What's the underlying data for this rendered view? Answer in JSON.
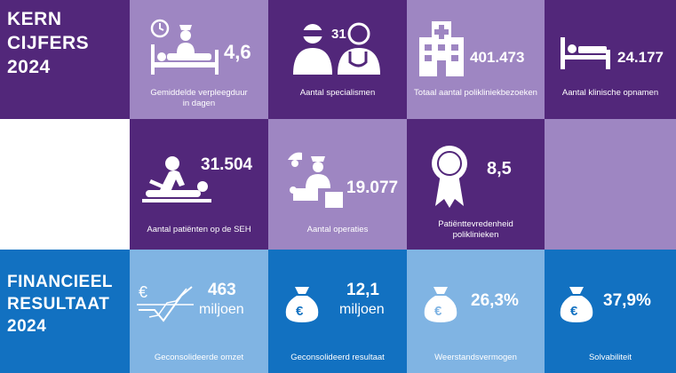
{
  "kerncijfers": {
    "heading_line1": "KERN",
    "heading_line2": "CIJFERS",
    "heading_line3": "2024",
    "verpleegduur": {
      "value": "4,6",
      "label": "Gemiddelde verpleegduur\nin dagen"
    },
    "specialismen": {
      "value": "31",
      "label": "Aantal specialismen"
    },
    "polikliniekbezoeken": {
      "value": "401.473",
      "label": "Totaal aantal polikliniekbezoeken"
    },
    "opnamen": {
      "value": "24.177",
      "label": "Aantal klinische opnamen"
    },
    "seh": {
      "value": "31.504",
      "label": "Aantal patiënten op de SEH"
    },
    "operaties": {
      "value": "19.077",
      "label": "Aantal operaties"
    },
    "tevredenheid": {
      "value": "8,5",
      "label": "Patiënttevredenheid\npoliklinieken"
    }
  },
  "financieel": {
    "heading_line1": "FINANCIEEL",
    "heading_line2": "RESULTAAT",
    "heading_line3": "2024",
    "omzet": {
      "value": "463",
      "unit": "miljoen",
      "label": "Geconsolideerde omzet",
      "icon": "euro-chart-icon"
    },
    "resultaat": {
      "value": "12,1",
      "unit": "miljoen",
      "label": "Geconsolideerd resultaat",
      "icon": "money-bag-icon"
    },
    "weerstand": {
      "value": "26,3%",
      "label": "Weerstandsvermogen",
      "icon": "money-bag-icon"
    },
    "solvabiliteit": {
      "value": "37,9%",
      "label": "Solvabiliteit",
      "icon": "money-bag-icon"
    }
  },
  "colors": {
    "dark_purple": "#52277a",
    "light_purple": "#9e86c2",
    "blue": "#1271c1",
    "light_blue": "#80b4e3"
  }
}
